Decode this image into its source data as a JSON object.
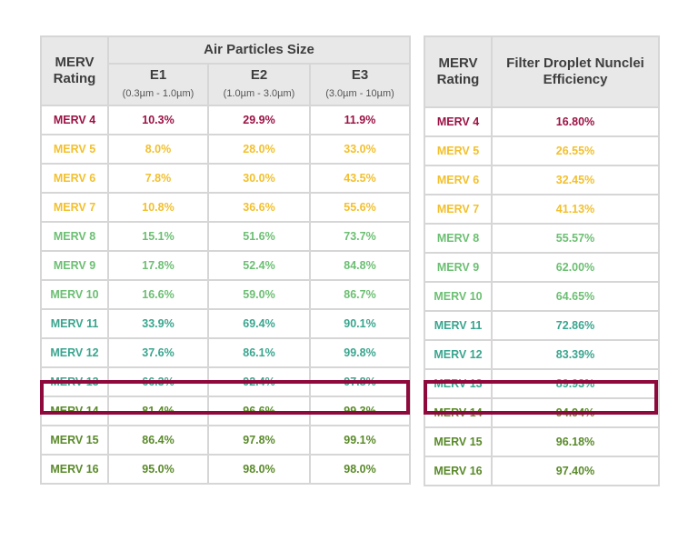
{
  "colors": {
    "merv4": "#9b1244",
    "merv5_7": "#f2c02e",
    "merv8_10": "#6cbf73",
    "merv11_13": "#3aa58f",
    "merv14_16": "#5a8a2a",
    "highlight_border": "#8e0a3c",
    "header_bg": "#e8e8e8",
    "grid": "#d6d6d6"
  },
  "table1": {
    "rating_header": [
      "MERV",
      "Rating"
    ],
    "group_header": "Air Particles Size",
    "columns": [
      {
        "label": "E1",
        "range": "(0.3µm - 1.0µm)"
      },
      {
        "label": "E2",
        "range": "(1.0µm - 3.0µm)"
      },
      {
        "label": "E3",
        "range": "(3.0µm - 10µm)"
      }
    ],
    "rows": [
      {
        "rating": "MERV 4",
        "e1": "10.3%",
        "e2": "29.9%",
        "e3": "11.9%",
        "color": "#9b1244"
      },
      {
        "rating": "MERV 5",
        "e1": "8.0%",
        "e2": "28.0%",
        "e3": "33.0%",
        "color": "#f2c02e"
      },
      {
        "rating": "MERV 6",
        "e1": "7.8%",
        "e2": "30.0%",
        "e3": "43.5%",
        "color": "#f2c02e"
      },
      {
        "rating": "MERV 7",
        "e1": "10.8%",
        "e2": "36.6%",
        "e3": "55.6%",
        "color": "#f2c02e"
      },
      {
        "rating": "MERV 8",
        "e1": "15.1%",
        "e2": "51.6%",
        "e3": "73.7%",
        "color": "#6cbf73"
      },
      {
        "rating": "MERV 9",
        "e1": "17.8%",
        "e2": "52.4%",
        "e3": "84.8%",
        "color": "#6cbf73"
      },
      {
        "rating": "MERV 10",
        "e1": "16.6%",
        "e2": "59.0%",
        "e3": "86.7%",
        "color": "#6cbf73"
      },
      {
        "rating": "MERV 11",
        "e1": "33.9%",
        "e2": "69.4%",
        "e3": "90.1%",
        "color": "#3aa58f"
      },
      {
        "rating": "MERV 12",
        "e1": "37.6%",
        "e2": "86.1%",
        "e3": "99.8%",
        "color": "#3aa58f"
      },
      {
        "rating": "MERV 13",
        "e1": "66.3%",
        "e2": "92.4%",
        "e3": "97.8%",
        "color": "#3aa58f"
      },
      {
        "rating": "MERV 14",
        "e1": "81.4%",
        "e2": "96.6%",
        "e3": "99.3%",
        "color": "#5a8a2a"
      },
      {
        "rating": "MERV 15",
        "e1": "86.4%",
        "e2": "97.8%",
        "e3": "99.1%",
        "color": "#5a8a2a"
      },
      {
        "rating": "MERV 16",
        "e1": "95.0%",
        "e2": "98.0%",
        "e3": "98.0%",
        "color": "#5a8a2a"
      }
    ],
    "highlighted_row": "MERV 13"
  },
  "table2": {
    "rating_header": [
      "MERV",
      "Rating"
    ],
    "efficiency_header": [
      "Filter Droplet Nunclei",
      "Efficiency"
    ],
    "rows": [
      {
        "rating": "MERV 4",
        "value": "16.80%"
      },
      {
        "rating": "MERV 5",
        "value": "26.55%"
      },
      {
        "rating": "MERV 6",
        "value": "32.45%"
      },
      {
        "rating": "MERV 7",
        "value": "41.13%"
      },
      {
        "rating": "MERV 8",
        "value": "55.57%"
      },
      {
        "rating": "MERV 9",
        "value": "62.00%"
      },
      {
        "rating": "MERV 10",
        "value": "64.65%"
      },
      {
        "rating": "MERV 11",
        "value": "72.86%"
      },
      {
        "rating": "MERV 12",
        "value": "83.39%"
      },
      {
        "rating": "MERV 13",
        "value": "89.93%"
      },
      {
        "rating": "MERV 14",
        "value": "94.94%"
      },
      {
        "rating": "MERV 15",
        "value": "96.18%"
      },
      {
        "rating": "MERV 16",
        "value": "97.40%"
      }
    ],
    "highlighted_row": "MERV 13"
  },
  "chart_data": [
    {
      "type": "table",
      "title": "Air Particles Size",
      "columns": [
        "MERV Rating",
        "E1 (0.3µm - 1.0µm)",
        "E2 (1.0µm - 3.0µm)",
        "E3 (3.0µm - 10µm)"
      ],
      "categories": [
        "MERV 4",
        "MERV 5",
        "MERV 6",
        "MERV 7",
        "MERV 8",
        "MERV 9",
        "MERV 10",
        "MERV 11",
        "MERV 12",
        "MERV 13",
        "MERV 14",
        "MERV 15",
        "MERV 16"
      ],
      "series": [
        {
          "name": "E1",
          "values": [
            10.3,
            8.0,
            7.8,
            10.8,
            15.1,
            17.8,
            16.6,
            33.9,
            37.6,
            66.3,
            81.4,
            86.4,
            95.0
          ]
        },
        {
          "name": "E2",
          "values": [
            29.9,
            28.0,
            30.0,
            36.6,
            51.6,
            52.4,
            59.0,
            69.4,
            86.1,
            92.4,
            96.6,
            97.8,
            98.0
          ]
        },
        {
          "name": "E3",
          "values": [
            11.9,
            33.0,
            43.5,
            55.6,
            73.7,
            84.8,
            86.7,
            90.1,
            99.8,
            97.8,
            99.3,
            99.1,
            98.0
          ]
        }
      ],
      "unit": "%",
      "highlight": "MERV 13"
    },
    {
      "type": "table",
      "title": "Filter Droplet Nunclei Efficiency",
      "columns": [
        "MERV Rating",
        "Filter Droplet Nunclei Efficiency"
      ],
      "categories": [
        "MERV 4",
        "MERV 5",
        "MERV 6",
        "MERV 7",
        "MERV 8",
        "MERV 9",
        "MERV 10",
        "MERV 11",
        "MERV 12",
        "MERV 13",
        "MERV 14",
        "MERV 15",
        "MERV 16"
      ],
      "series": [
        {
          "name": "Filter Droplet Nunclei Efficiency",
          "values": [
            16.8,
            26.55,
            32.45,
            41.13,
            55.57,
            62.0,
            64.65,
            72.86,
            83.39,
            89.93,
            94.94,
            96.18,
            97.4
          ]
        }
      ],
      "unit": "%",
      "highlight": "MERV 13"
    }
  ]
}
